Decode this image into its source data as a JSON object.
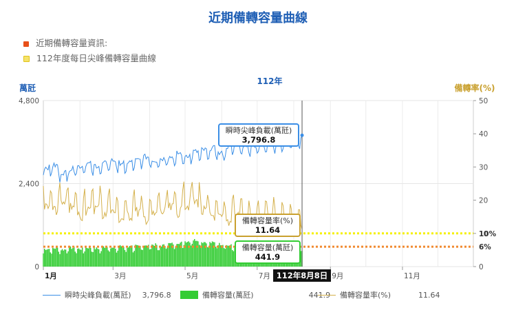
{
  "page": {
    "title": "近期備轉容量曲線",
    "info_items": [
      {
        "label": "近期備轉容量資訊:",
        "color": "#e8501a"
      },
      {
        "label": "112年度每日尖峰備轉容量曲線",
        "color": "#f2d000"
      }
    ]
  },
  "chart_data": {
    "type": "line",
    "title": "112年",
    "x_axis": {
      "tick_labels": [
        "1月",
        "3月",
        "5月",
        "7月",
        "9月",
        "11月"
      ],
      "range": [
        "2023-01-01",
        "2023-12-31"
      ],
      "highlight_label": "112年8月8日"
    },
    "y_left": {
      "label": "萬瓩",
      "ticks": [
        "0",
        "2,400",
        "4,800"
      ],
      "ylim": [
        0,
        4800
      ]
    },
    "y_right": {
      "label": "備轉率(%)",
      "ticks": [
        "0",
        "10",
        "20",
        "30",
        "40",
        "50"
      ],
      "ylim": [
        0,
        50
      ]
    },
    "reference_lines": [
      {
        "label": "10%",
        "value": 10,
        "color": "#f5f000"
      },
      {
        "label": "6%",
        "value": 6,
        "color": "#f08a30"
      }
    ],
    "series": [
      {
        "name": "瞬時尖峰負載(萬瓩)",
        "kind": "line",
        "axis": "left",
        "color": "#3a8ee6",
        "weekly_values": [
          2850,
          2900,
          2700,
          2800,
          2880,
          2950,
          2900,
          2960,
          3050,
          2980,
          3000,
          3050,
          3150,
          3050,
          3100,
          3150,
          3250,
          3200,
          3300,
          3350,
          3400,
          3250,
          3450,
          3550,
          3500,
          3450,
          3500,
          3600,
          3550,
          3650,
          3700,
          3680
        ],
        "spike_amplitude": 260,
        "current_value": "3,796.8"
      },
      {
        "name": "備轉容量(萬瓩)",
        "kind": "bar",
        "axis": "left",
        "color": "#33cc33",
        "weekly_values": [
          500,
          520,
          480,
          530,
          500,
          540,
          510,
          560,
          520,
          580,
          560,
          600,
          580,
          620,
          600,
          650,
          680,
          720,
          760,
          700,
          680,
          640,
          600,
          560,
          520,
          500,
          540,
          520,
          480,
          500,
          460,
          450
        ],
        "current_value": "441.9"
      },
      {
        "name": "備轉容量率(%)",
        "kind": "line",
        "axis": "right",
        "color": "#d4b04a",
        "weekly_values": [
          18,
          17,
          19,
          18,
          16,
          17,
          18,
          16,
          17,
          15,
          16,
          17,
          15,
          16,
          17,
          18,
          17,
          19,
          20,
          17,
          16,
          15,
          14,
          16,
          15,
          13,
          14,
          15,
          13,
          14,
          12.5,
          11.6
        ],
        "spike_amplitude": 6,
        "current_value": "11.64"
      }
    ],
    "tooltips": [
      {
        "title": "瞬時尖峰負載(萬瓩)",
        "value": "3,796.8",
        "color": "#3a8ee6"
      },
      {
        "title": "備轉容量率(%)",
        "value": "11.64",
        "color": "#c9a02e"
      },
      {
        "title": "備轉容量(萬瓩)",
        "value": "441.9",
        "color": "#33cc33"
      }
    ]
  }
}
